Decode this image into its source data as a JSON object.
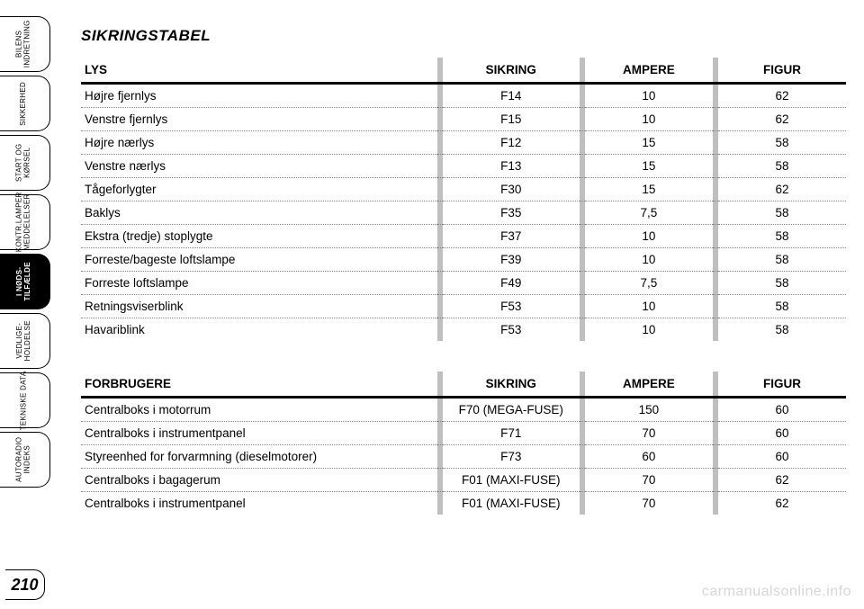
{
  "sidebar": {
    "tabs": [
      {
        "label": "BILENS\nINDRETNING",
        "active": false
      },
      {
        "label": "SIKKERHED",
        "active": false
      },
      {
        "label": "START OG\nKØRSEL",
        "active": false
      },
      {
        "label": "KONTR.LAMPER\nMEDDELELSER",
        "active": false
      },
      {
        "label": "I NØDS-\nTILFÆLDE",
        "active": true
      },
      {
        "label": "VEDLIGE-\nHOLDELSE",
        "active": false
      },
      {
        "label": "TEKNISKE DATA",
        "active": false
      },
      {
        "label": "AUTORADIO\nINDEKS",
        "active": false
      }
    ]
  },
  "page_number": "210",
  "title": "SIKRINGSTABEL",
  "table1": {
    "headers": {
      "c0": "LYS",
      "c1": "SIKRING",
      "c2": "AMPERE",
      "c3": "FIGUR"
    },
    "rows": [
      {
        "c0": "Højre fjernlys",
        "c1": "F14",
        "c2": "10",
        "c3": "62"
      },
      {
        "c0": "Venstre fjernlys",
        "c1": "F15",
        "c2": "10",
        "c3": "62"
      },
      {
        "c0": "Højre nærlys",
        "c1": "F12",
        "c2": "15",
        "c3": "58"
      },
      {
        "c0": "Venstre nærlys",
        "c1": "F13",
        "c2": "15",
        "c3": "58"
      },
      {
        "c0": "Tågeforlygter",
        "c1": "F30",
        "c2": "15",
        "c3": "62"
      },
      {
        "c0": "Baklys",
        "c1": "F35",
        "c2": "7,5",
        "c3": "58"
      },
      {
        "c0": "Ekstra (tredje) stoplygte",
        "c1": "F37",
        "c2": "10",
        "c3": "58"
      },
      {
        "c0": "Forreste/bageste loftslampe",
        "c1": "F39",
        "c2": "10",
        "c3": "58"
      },
      {
        "c0": "Forreste loftslampe",
        "c1": "F49",
        "c2": "7,5",
        "c3": "58"
      },
      {
        "c0": "Retningsviserblink",
        "c1": "F53",
        "c2": "10",
        "c3": "58"
      },
      {
        "c0": "Havariblink",
        "c1": "F53",
        "c2": "10",
        "c3": "58"
      }
    ]
  },
  "table2": {
    "headers": {
      "c0": "FORBRUGERE",
      "c1": "SIKRING",
      "c2": "AMPERE",
      "c3": "FIGUR"
    },
    "rows": [
      {
        "c0": "Centralboks i motorrum",
        "c1": "F70 (MEGA-FUSE)",
        "c2": "150",
        "c3": "60"
      },
      {
        "c0": "Centralboks i instrumentpanel",
        "c1": "F71",
        "c2": "70",
        "c3": "60"
      },
      {
        "c0": "Styreenhed for forvarmning (dieselmotorer)",
        "c1": "F73",
        "c2": "60",
        "c3": "60"
      },
      {
        "c0": "Centralboks i bagagerum",
        "c1": "F01 (MAXI-FUSE)",
        "c2": "70",
        "c3": "62"
      },
      {
        "c0": "Centralboks i instrumentpanel",
        "c1": "F01 (MAXI-FUSE)",
        "c2": "70",
        "c3": "62"
      }
    ]
  },
  "watermark": "carmanualsonline.info",
  "colors": {
    "separator": "#bfbfbf",
    "dotted": "#888888",
    "text": "#000000",
    "bg": "#ffffff",
    "wm": "#d7d7d7"
  }
}
